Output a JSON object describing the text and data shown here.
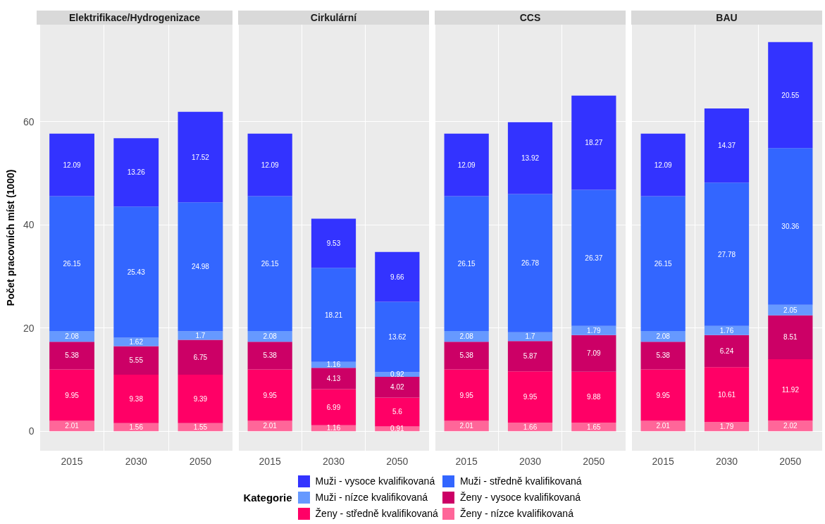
{
  "chart_data": [
    {
      "type": "bar",
      "title": "Elektrifikace/Hydrogenizace",
      "ylabel": "Počet pracovních míst (1000)",
      "legend_title": "Kategorie",
      "legend": "bottom",
      "categories": [
        "2015",
        "2030",
        "2050"
      ],
      "stacked": true,
      "data_labels": true,
      "grid": true,
      "ylim": [
        -3.8,
        78.8
      ],
      "yticks": [
        0,
        20,
        40,
        60
      ],
      "series": [
        {
          "name": "Ženy - nízce kvalifikovaná",
          "color": "#ff6699",
          "values": [
            2.01,
            1.56,
            1.55
          ]
        },
        {
          "name": "Ženy - středně kvalifikovaná",
          "color": "#ff0066",
          "values": [
            9.95,
            9.38,
            9.39
          ]
        },
        {
          "name": "Ženy - vysoce kvalifikovaná",
          "color": "#cc0066",
          "values": [
            5.38,
            5.55,
            6.75
          ]
        },
        {
          "name": "Muži - nízce kvalifikovaná",
          "color": "#6699ff",
          "values": [
            2.08,
            1.62,
            1.7
          ]
        },
        {
          "name": "Muži - středně kvalifikovaná",
          "color": "#3366ff",
          "values": [
            26.15,
            25.43,
            24.98
          ]
        },
        {
          "name": "Muži - vysoce kvalifikovaná",
          "color": "#3333ff",
          "values": [
            12.09,
            13.26,
            17.52
          ]
        }
      ]
    },
    {
      "type": "bar",
      "title": "Cirkulární",
      "categories": [
        "2015",
        "2030",
        "2050"
      ],
      "stacked": true,
      "data_labels": true,
      "grid": true,
      "tick_labels": "x",
      "ylim": [
        -3.8,
        78.8
      ],
      "yticks": [
        0,
        20,
        40,
        60
      ],
      "series": [
        {
          "color": "#ff6699",
          "values": [
            2.01,
            1.16,
            0.91
          ]
        },
        {
          "color": "#ff0066",
          "values": [
            9.95,
            6.99,
            5.6
          ]
        },
        {
          "color": "#cc0066",
          "values": [
            5.38,
            4.13,
            4.02
          ]
        },
        {
          "color": "#6699ff",
          "values": [
            2.08,
            1.16,
            0.92
          ]
        },
        {
          "color": "#3366ff",
          "values": [
            26.15,
            18.21,
            13.62
          ]
        },
        {
          "color": "#3333ff",
          "values": [
            12.09,
            9.53,
            9.66
          ]
        }
      ]
    },
    {
      "type": "bar",
      "title": "CCS",
      "categories": [
        "2015",
        "2030",
        "2050"
      ],
      "stacked": true,
      "data_labels": true,
      "grid": true,
      "tick_labels": "x",
      "ylim": [
        -3.8,
        78.8
      ],
      "yticks": [
        0,
        20,
        40,
        60
      ],
      "series": [
        {
          "color": "#ff6699",
          "values": [
            2.01,
            1.66,
            1.65
          ]
        },
        {
          "color": "#ff0066",
          "values": [
            9.95,
            9.95,
            9.88
          ]
        },
        {
          "color": "#cc0066",
          "values": [
            5.38,
            5.87,
            7.09
          ]
        },
        {
          "color": "#6699ff",
          "values": [
            2.08,
            1.7,
            1.79
          ]
        },
        {
          "color": "#3366ff",
          "values": [
            26.15,
            26.78,
            26.37
          ]
        },
        {
          "color": "#3333ff",
          "values": [
            12.09,
            13.92,
            18.27
          ]
        }
      ]
    },
    {
      "type": "bar",
      "title": "BAU",
      "categories": [
        "2015",
        "2030",
        "2050"
      ],
      "stacked": true,
      "data_labels": true,
      "grid": true,
      "tick_labels": "x",
      "ylim": [
        -3.8,
        78.8
      ],
      "yticks": [
        0,
        20,
        40,
        60
      ],
      "series": [
        {
          "color": "#ff6699",
          "values": [
            2.01,
            1.79,
            2.02
          ]
        },
        {
          "color": "#ff0066",
          "values": [
            9.95,
            10.61,
            11.92
          ]
        },
        {
          "color": "#cc0066",
          "values": [
            5.38,
            6.24,
            8.51
          ]
        },
        {
          "color": "#6699ff",
          "values": [
            2.08,
            1.76,
            2.05
          ]
        },
        {
          "color": "#3366ff",
          "values": [
            26.15,
            27.78,
            30.36
          ]
        },
        {
          "color": "#3333ff",
          "values": [
            12.09,
            14.37,
            20.55
          ]
        }
      ]
    }
  ]
}
